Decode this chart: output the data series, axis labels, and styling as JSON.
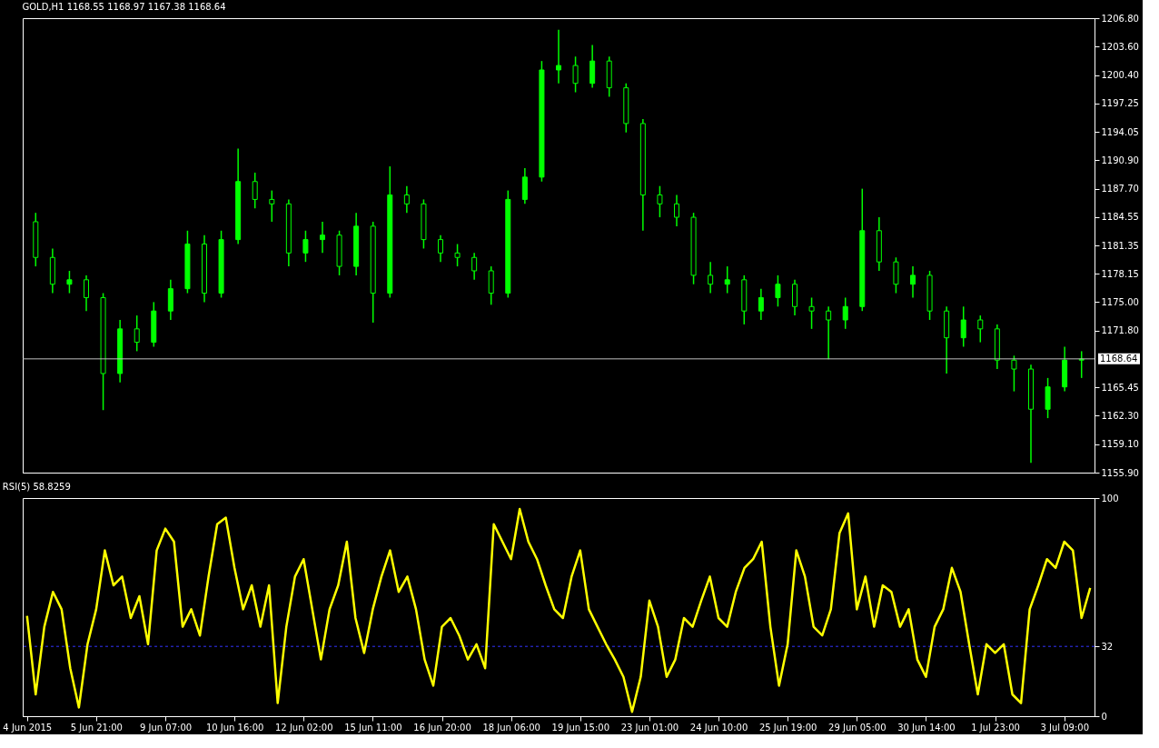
{
  "chart_data": [
    {
      "type": "candlestick",
      "title": "GOLD,H1 1168.55 1168.97 1167.38 1168.64",
      "grid": false,
      "tick_labels": "y",
      "categories": [
        null,
        null,
        null,
        null,
        null,
        null,
        null,
        null,
        null,
        null,
        null,
        null,
        null,
        null,
        null,
        null,
        null,
        null,
        null,
        null,
        null,
        null,
        null,
        null,
        null,
        null,
        null,
        null,
        null,
        null,
        null,
        null,
        null,
        null,
        null,
        null,
        null,
        null,
        null,
        null,
        null,
        null,
        null,
        null,
        null,
        null,
        null,
        null,
        null,
        null,
        null,
        null,
        null,
        null,
        null,
        null,
        null,
        null,
        null,
        null,
        null,
        null,
        null
      ],
      "ylim": [
        1155.9,
        1206.8
      ],
      "yticks": [
        {
          "value": 1155.9,
          "label": "1155.90"
        },
        {
          "value": 1159.1,
          "label": "1159.10"
        },
        {
          "value": 1162.3,
          "label": "1162.30"
        },
        {
          "value": 1165.45,
          "label": "1165.45"
        },
        {
          "value": 1171.8,
          "label": "1171.80"
        },
        {
          "value": 1175.0,
          "label": "1175.00"
        },
        {
          "value": 1178.15,
          "label": "1178.15"
        },
        {
          "value": 1181.35,
          "label": "1181.35"
        },
        {
          "value": 1184.55,
          "label": "1184.55"
        },
        {
          "value": 1187.7,
          "label": "1187.70"
        },
        {
          "value": 1190.9,
          "label": "1190.90"
        },
        {
          "value": 1194.05,
          "label": "1194.05"
        },
        {
          "value": 1197.25,
          "label": "1197.25"
        },
        {
          "value": 1200.4,
          "label": "1200.40"
        },
        {
          "value": 1203.6,
          "label": "1203.60"
        },
        {
          "value": 1206.8,
          "label": "1206.80"
        }
      ],
      "ref_lines": [
        {
          "axis": "y",
          "value": 1168.64,
          "label": "1168.64",
          "color": "#c0c0c0",
          "line_style": "solid"
        }
      ],
      "series": [
        {
          "color": "#00ff00",
          "ohlc": [
            [
              1184.0,
              1185.0,
              1179.0,
              1180.0
            ],
            [
              1180.0,
              1181.0,
              1176.0,
              1177.0
            ],
            [
              1177.0,
              1178.5,
              1176.0,
              1177.5
            ],
            [
              1177.5,
              1178.0,
              1174.0,
              1175.5
            ],
            [
              1175.5,
              1176.0,
              1162.9,
              1167.0
            ],
            [
              1167.0,
              1173.0,
              1166.0,
              1172.0
            ],
            [
              1172.0,
              1173.5,
              1169.5,
              1170.5
            ],
            [
              1170.5,
              1175.0,
              1170.0,
              1174.0
            ],
            [
              1174.0,
              1177.5,
              1173.0,
              1176.5
            ],
            [
              1176.5,
              1183.0,
              1176.0,
              1181.5
            ],
            [
              1181.5,
              1182.5,
              1175.0,
              1176.0
            ],
            [
              1176.0,
              1183.0,
              1175.5,
              1182.0
            ],
            [
              1182.0,
              1192.2,
              1181.5,
              1188.5
            ],
            [
              1188.5,
              1189.5,
              1185.5,
              1186.5
            ],
            [
              1186.5,
              1187.5,
              1184.0,
              1186.0
            ],
            [
              1186.0,
              1186.5,
              1179.0,
              1180.5
            ],
            [
              1180.5,
              1183.0,
              1179.5,
              1182.0
            ],
            [
              1182.0,
              1184.0,
              1180.5,
              1182.5
            ],
            [
              1182.5,
              1183.0,
              1178.0,
              1179.0
            ],
            [
              1179.0,
              1185.0,
              1178.0,
              1183.5
            ],
            [
              1183.5,
              1184.0,
              1172.7,
              1176.0
            ],
            [
              1176.0,
              1190.2,
              1175.5,
              1187.0
            ],
            [
              1187.0,
              1188.0,
              1185.0,
              1186.0
            ],
            [
              1186.0,
              1186.5,
              1181.0,
              1182.0
            ],
            [
              1182.0,
              1182.5,
              1179.5,
              1180.5
            ],
            [
              1180.5,
              1181.5,
              1179.0,
              1180.0
            ],
            [
              1180.0,
              1180.5,
              1177.5,
              1178.5
            ],
            [
              1178.5,
              1179.0,
              1174.7,
              1176.0
            ],
            [
              1176.0,
              1187.5,
              1175.5,
              1186.5
            ],
            [
              1186.5,
              1190.0,
              1186.0,
              1189.0
            ],
            [
              1189.0,
              1202.0,
              1188.5,
              1201.0
            ],
            [
              1201.0,
              1205.5,
              1199.5,
              1201.5
            ],
            [
              1201.5,
              1202.5,
              1198.5,
              1199.5
            ],
            [
              1199.5,
              1203.8,
              1199.0,
              1202.0
            ],
            [
              1202.0,
              1202.5,
              1198.0,
              1199.0
            ],
            [
              1199.0,
              1199.5,
              1194.0,
              1195.0
            ],
            [
              1195.0,
              1195.5,
              1183.0,
              1187.0
            ],
            [
              1187.0,
              1188.0,
              1184.5,
              1186.0
            ],
            [
              1186.0,
              1187.0,
              1183.5,
              1184.5
            ],
            [
              1184.5,
              1185.0,
              1177.0,
              1178.0
            ],
            [
              1178.0,
              1179.5,
              1176.0,
              1177.0
            ],
            [
              1177.0,
              1179.0,
              1176.0,
              1177.5
            ],
            [
              1177.5,
              1178.0,
              1172.5,
              1174.0
            ],
            [
              1174.0,
              1176.5,
              1173.0,
              1175.5
            ],
            [
              1175.5,
              1178.0,
              1174.5,
              1177.0
            ],
            [
              1177.0,
              1177.5,
              1173.5,
              1174.5
            ],
            [
              1174.5,
              1175.5,
              1172.0,
              1174.0
            ],
            [
              1174.0,
              1174.5,
              1168.6,
              1173.0
            ],
            [
              1173.0,
              1175.5,
              1172.0,
              1174.5
            ],
            [
              1174.5,
              1187.7,
              1174.0,
              1183.0
            ],
            [
              1183.0,
              1184.5,
              1178.5,
              1179.5
            ],
            [
              1179.5,
              1180.0,
              1176.0,
              1177.0
            ],
            [
              1177.0,
              1179.0,
              1175.5,
              1178.0
            ],
            [
              1178.0,
              1178.5,
              1173.0,
              1174.0
            ],
            [
              1174.0,
              1174.5,
              1167.0,
              1171.0
            ],
            [
              1171.0,
              1174.5,
              1170.0,
              1173.0
            ],
            [
              1173.0,
              1173.5,
              1170.5,
              1172.0
            ],
            [
              1172.0,
              1172.5,
              1167.5,
              1168.5
            ],
            [
              1168.5,
              1169.0,
              1165.0,
              1167.5
            ],
            [
              1167.5,
              1168.0,
              1157.0,
              1163.0
            ],
            [
              1163.0,
              1166.5,
              1162.0,
              1165.5
            ],
            [
              1165.5,
              1170.0,
              1165.0,
              1168.5
            ],
            [
              1168.5,
              1169.5,
              1166.5,
              1168.6
            ]
          ]
        }
      ]
    },
    {
      "type": "line",
      "title": "RSI(5) 58.8259",
      "grid": false,
      "marker": "none",
      "line_style": "solid",
      "categories": [
        "4 Jun 2015",
        null,
        null,
        null,
        null,
        null,
        null,
        null,
        "5 Jun 21:00",
        null,
        null,
        null,
        null,
        null,
        null,
        null,
        "9 Jun 07:00",
        null,
        null,
        null,
        null,
        null,
        null,
        null,
        "10 Jun 16:00",
        null,
        null,
        null,
        null,
        null,
        null,
        null,
        "12 Jun 02:00",
        null,
        null,
        null,
        null,
        null,
        null,
        null,
        "15 Jun 11:00",
        null,
        null,
        null,
        null,
        null,
        null,
        null,
        "16 Jun 20:00",
        null,
        null,
        null,
        null,
        null,
        null,
        null,
        "18 Jun 06:00",
        null,
        null,
        null,
        null,
        null,
        null,
        null,
        "19 Jun 15:00",
        null,
        null,
        null,
        null,
        null,
        null,
        null,
        "23 Jun 01:00",
        null,
        null,
        null,
        null,
        null,
        null,
        null,
        "24 Jun 10:00",
        null,
        null,
        null,
        null,
        null,
        null,
        null,
        "25 Jun 19:00",
        null,
        null,
        null,
        null,
        null,
        null,
        null,
        "29 Jun 05:00",
        null,
        null,
        null,
        null,
        null,
        null,
        null,
        "30 Jun 14:00",
        null,
        null,
        null,
        null,
        null,
        null,
        null,
        "1 Jul 23:00",
        null,
        null,
        null,
        null,
        null,
        null,
        null,
        "3 Jul 09:00",
        null,
        null,
        null
      ],
      "ylim": [
        0,
        100
      ],
      "yticks": [
        0,
        32,
        100
      ],
      "ref_lines": [
        {
          "axis": "y",
          "value": 32,
          "color": "#3333ff",
          "line_style": "dashed"
        }
      ],
      "series": [
        {
          "color": "#ffff00",
          "values": [
            46,
            10,
            41,
            57,
            49,
            22,
            4,
            33,
            49,
            76,
            60,
            64,
            45,
            55,
            33,
            76,
            86,
            80,
            41,
            49,
            37,
            64,
            88,
            91,
            68,
            49,
            60,
            41,
            60,
            6,
            41,
            64,
            72,
            49,
            26,
            49,
            60,
            80,
            45,
            29,
            49,
            64,
            76,
            57,
            64,
            49,
            26,
            14,
            41,
            45,
            37,
            26,
            33,
            22,
            88,
            80,
            72,
            95,
            80,
            72,
            60,
            49,
            45,
            64,
            76,
            49,
            41,
            33,
            26,
            18,
            2,
            18,
            53,
            41,
            18,
            26,
            45,
            41,
            53,
            64,
            45,
            41,
            57,
            68,
            72,
            80,
            41,
            14,
            33,
            76,
            64,
            41,
            37,
            49,
            84,
            93,
            49,
            64,
            41,
            60,
            57,
            41,
            49,
            26,
            18,
            41,
            49,
            68,
            57,
            33,
            10,
            33,
            29,
            33,
            10,
            6,
            49,
            60,
            72,
            68,
            80,
            76,
            45,
            58.8
          ]
        }
      ]
    }
  ]
}
